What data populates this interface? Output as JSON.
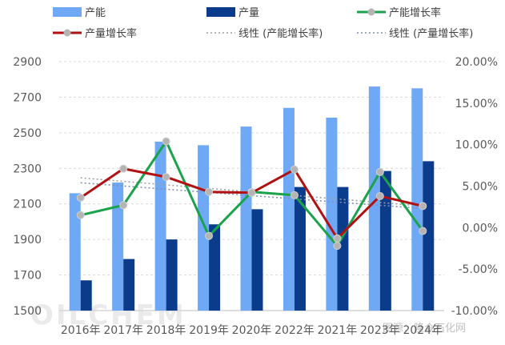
{
  "chart_data": {
    "type": "bar",
    "categories": [
      "2016年",
      "2017年",
      "2018年",
      "2019年",
      "2020年",
      "2022年",
      "2021年",
      "2023年",
      "2024年"
    ],
    "series": [
      {
        "name": "产能",
        "type": "bar",
        "axis": "left",
        "color": "#6fa8f5",
        "values": [
          2160,
          2220,
          2450,
          2430,
          2535,
          2640,
          2585,
          2760,
          2750
        ]
      },
      {
        "name": "产量",
        "type": "bar",
        "axis": "left",
        "color": "#0b3c8c",
        "values": [
          1670,
          1790,
          1900,
          1985,
          2070,
          2195,
          2195,
          2285,
          2340
        ]
      },
      {
        "name": "产能增长率",
        "type": "line",
        "axis": "right",
        "color": "#1aa34a",
        "values": [
          1.5,
          2.7,
          10.4,
          -1.0,
          4.3,
          3.9,
          -2.2,
          6.7,
          -0.4
        ]
      },
      {
        "name": "产量增长率",
        "type": "line",
        "axis": "right",
        "color": "#b01212",
        "values": [
          3.6,
          7.1,
          6.1,
          4.3,
          4.2,
          7.0,
          -1.3,
          3.8,
          2.6
        ]
      }
    ],
    "trendlines": [
      {
        "name": "线性 (产能增长率)",
        "color": "#9aa0a6",
        "values": [
          6.0,
          2.6
        ]
      },
      {
        "name": "线性 (产量增长率)",
        "color": "#7f8fb3",
        "values": [
          5.4,
          2.3
        ]
      }
    ],
    "ylim_left": [
      1500,
      2900
    ],
    "yticks_left": [
      "1500",
      "1700",
      "1900",
      "2100",
      "2300",
      "2500",
      "2700",
      "2900"
    ],
    "ylim_right": [
      -10,
      20
    ],
    "yticks_right": [
      "-10.00%",
      "-5.00%",
      "0.00%",
      "5.00%",
      "10.00%",
      "15.00%",
      "20.00%"
    ],
    "grid": true,
    "legend_position": "top"
  },
  "watermark": {
    "logo": "OILCHEM",
    "source": "图源：隆众石化网"
  }
}
